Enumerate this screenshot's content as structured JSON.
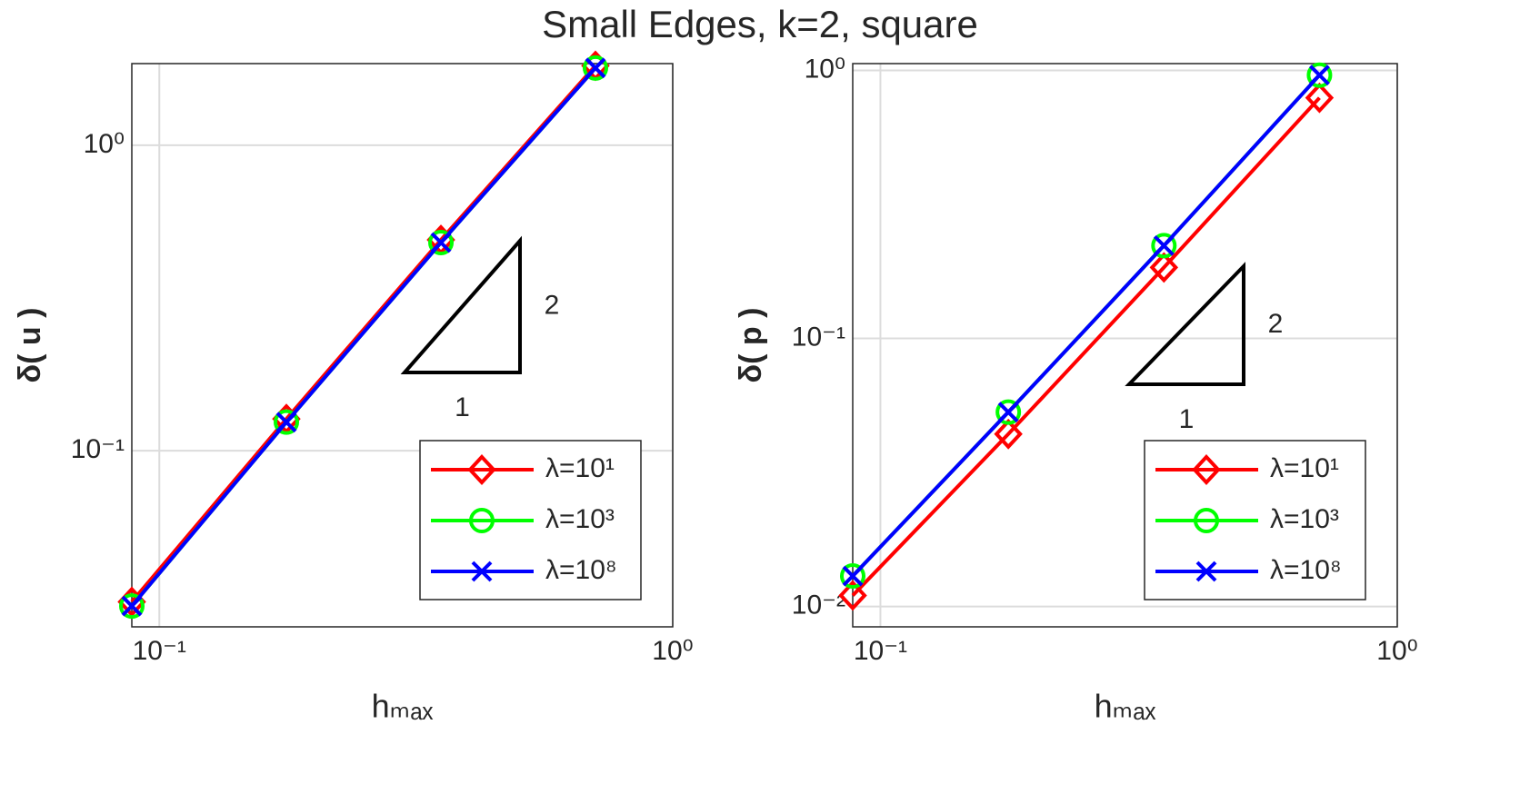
{
  "title": "Small Edges, k=2, square",
  "chart_data": [
    {
      "type": "line",
      "xscale": "log",
      "yscale": "log",
      "grid": true,
      "legend": "lower right",
      "xlabel": "hₘₐₓ",
      "ylabel": "δ( u )",
      "x": [
        0.0884,
        0.1768,
        0.3536,
        0.7071
      ],
      "xlim": [
        0.0884,
        1
      ],
      "ylim": [
        0.0265,
        1.85
      ],
      "xticks": [
        {
          "value": 0.1,
          "label": "10⁻¹"
        },
        {
          "value": 1,
          "label": "10⁰"
        }
      ],
      "yticks": [
        {
          "value": 0.1,
          "label": "10⁻¹"
        },
        {
          "value": 1,
          "label": "10⁰"
        }
      ],
      "annotations": [
        "2",
        "1"
      ],
      "series": [
        {
          "name": "λ=10¹",
          "color": "#ff0000",
          "marker": "diamond",
          "values": [
            0.032,
            0.127,
            0.49,
            1.82
          ]
        },
        {
          "name": "λ=10³",
          "color": "#00ff00",
          "marker": "circle",
          "values": [
            0.031,
            0.124,
            0.48,
            1.79
          ]
        },
        {
          "name": "λ=10⁸",
          "color": "#0000ff",
          "marker": "x",
          "values": [
            0.031,
            0.124,
            0.48,
            1.79
          ]
        }
      ]
    },
    {
      "type": "line",
      "xscale": "log",
      "yscale": "log",
      "grid": true,
      "legend": "lower right",
      "xlabel": "hₘₐₓ",
      "ylabel": "δ( p )",
      "x": [
        0.0884,
        0.1768,
        0.3536,
        0.7071
      ],
      "xlim": [
        0.0884,
        1
      ],
      "ylim": [
        0.0084,
        1.06
      ],
      "xticks": [
        {
          "value": 0.1,
          "label": "10⁻¹"
        },
        {
          "value": 1,
          "label": "10⁰"
        }
      ],
      "yticks": [
        {
          "value": 0.01,
          "label": "10⁻²"
        },
        {
          "value": 0.1,
          "label": "10⁻¹"
        },
        {
          "value": 1,
          "label": "10⁰"
        }
      ],
      "annotations": [
        "2",
        "1"
      ],
      "series": [
        {
          "name": "λ=10¹",
          "color": "#ff0000",
          "marker": "diamond",
          "values": [
            0.011,
            0.044,
            0.184,
            0.79
          ]
        },
        {
          "name": "λ=10³",
          "color": "#00ff00",
          "marker": "circle",
          "values": [
            0.013,
            0.0531,
            0.222,
            0.96
          ]
        },
        {
          "name": "λ=10⁸",
          "color": "#0000ff",
          "marker": "x",
          "values": [
            0.013,
            0.0531,
            0.222,
            0.96
          ]
        }
      ]
    }
  ]
}
